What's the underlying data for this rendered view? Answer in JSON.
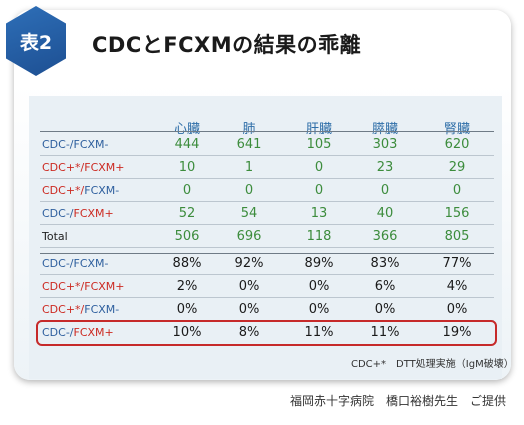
{
  "badge": "表2",
  "title": "CDCとFCXMの結果の乖離",
  "columns": [
    "心臓",
    "肺",
    "肝臓",
    "膵臓",
    "腎臓"
  ],
  "rows_counts": [
    {
      "label_parts": [
        {
          "text": "CDC-/FCXM-",
          "color": "blue"
        }
      ],
      "values": [
        "444",
        "641",
        "105",
        "303",
        "620"
      ]
    },
    {
      "label_parts": [
        {
          "text": "CDC+*/",
          "color": "red"
        },
        {
          "text": "FCXM+",
          "color": "red"
        }
      ],
      "values": [
        "10",
        "1",
        "0",
        "23",
        "29"
      ]
    },
    {
      "label_parts": [
        {
          "text": "CDC+*/",
          "color": "red"
        },
        {
          "text": "FCXM-",
          "color": "blue"
        }
      ],
      "values": [
        "0",
        "0",
        "0",
        "0",
        "0"
      ]
    },
    {
      "label_parts": [
        {
          "text": "CDC-/",
          "color": "blue"
        },
        {
          "text": "FCXM+",
          "color": "red"
        }
      ],
      "values": [
        "52",
        "54",
        "13",
        "40",
        "156"
      ]
    },
    {
      "label_parts": [
        {
          "text": "Total",
          "color": "black"
        }
      ],
      "values": [
        "506",
        "696",
        "118",
        "366",
        "805"
      ]
    }
  ],
  "rows_percent": [
    {
      "label_parts": [
        {
          "text": "CDC-/FCXM-",
          "color": "blue"
        }
      ],
      "values": [
        "88%",
        "92%",
        "89%",
        "83%",
        "77%"
      ]
    },
    {
      "label_parts": [
        {
          "text": "CDC+*/",
          "color": "red"
        },
        {
          "text": "FCXM+",
          "color": "red"
        }
      ],
      "values": [
        "2%",
        "0%",
        "0%",
        "6%",
        "4%"
      ]
    },
    {
      "label_parts": [
        {
          "text": "CDC+*/",
          "color": "red"
        },
        {
          "text": "FCXM-",
          "color": "blue"
        }
      ],
      "values": [
        "0%",
        "0%",
        "0%",
        "0%",
        "0%"
      ]
    },
    {
      "label_parts": [
        {
          "text": "CDC-/",
          "color": "blue"
        },
        {
          "text": "FCXM+",
          "color": "red"
        }
      ],
      "values": [
        "10%",
        "8%",
        "11%",
        "11%",
        "19%"
      ]
    }
  ],
  "footnote": "CDC+*　DTT処理実施（IgM破壊）",
  "credit": "福岡赤十字病院　橋口裕樹先生　ご提供",
  "colors": {
    "badge": "#1d4f92",
    "header": "#2e6ea8",
    "count_values": "#3c8c3c",
    "highlight_border": "#c62a2a"
  }
}
